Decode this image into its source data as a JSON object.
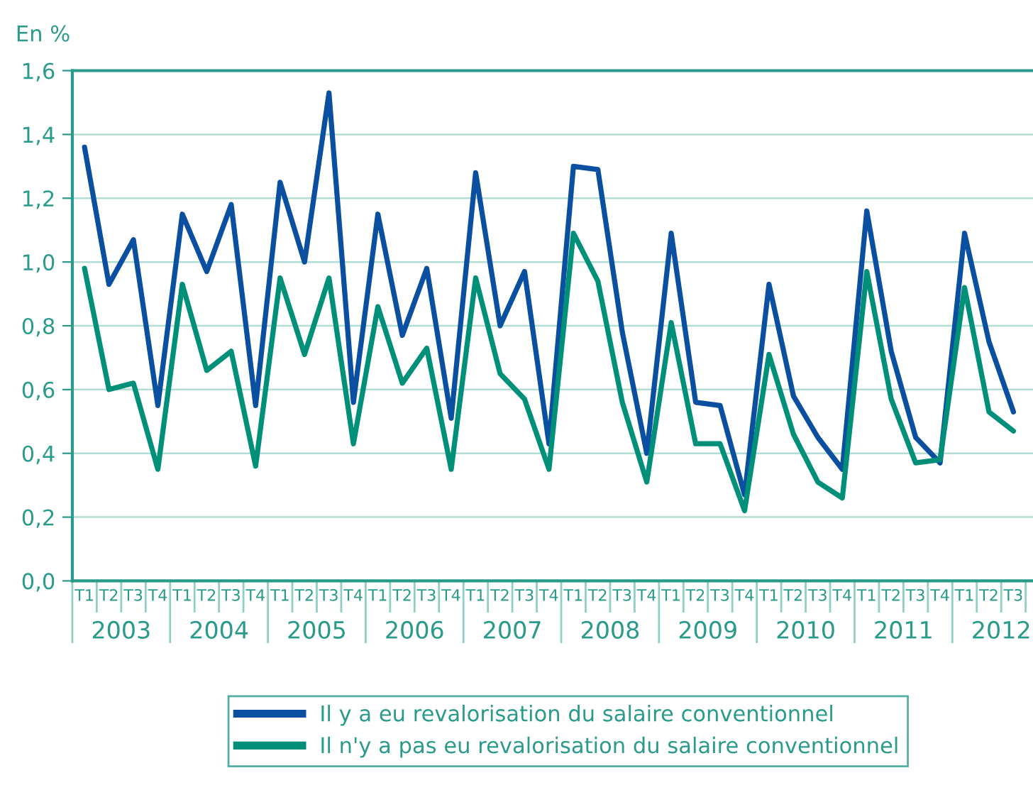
{
  "chart_data": {
    "type": "line",
    "ylabel": "En %",
    "categories": [
      "T1",
      "T2",
      "T3",
      "T4",
      "T1",
      "T2",
      "T3",
      "T4",
      "T1",
      "T2",
      "T3",
      "T4",
      "T1",
      "T2",
      "T3",
      "T4",
      "T1",
      "T2",
      "T3",
      "T4",
      "T1",
      "T2",
      "T3",
      "T4",
      "T1",
      "T2",
      "T3",
      "T4",
      "T1",
      "T2",
      "T3",
      "T4",
      "T1",
      "T2",
      "T3",
      "T4",
      "T1",
      "T2",
      "T3"
    ],
    "annotations": [
      "2003",
      "2004",
      "2005",
      "2006",
      "2007",
      "2008",
      "2009",
      "2010",
      "2011",
      "2012"
    ],
    "series": [
      {
        "name": "Il y a eu revalorisation du salaire conventionnel",
        "color": "#0a4fa0",
        "values": [
          1.36,
          0.93,
          1.07,
          0.55,
          1.15,
          0.97,
          1.18,
          0.55,
          1.25,
          1.0,
          1.53,
          0.56,
          1.15,
          0.77,
          0.98,
          0.51,
          1.28,
          0.8,
          0.97,
          0.43,
          1.3,
          1.29,
          0.78,
          0.4,
          1.09,
          0.56,
          0.55,
          0.27,
          0.93,
          0.58,
          0.45,
          0.35,
          1.16,
          0.72,
          0.45,
          0.37,
          1.09,
          0.75,
          0.53
        ]
      },
      {
        "name": "Il n'y a pas eu revalorisation du salaire conventionnel",
        "color": "#009079",
        "values": [
          0.98,
          0.6,
          0.62,
          0.35,
          0.93,
          0.66,
          0.72,
          0.36,
          0.95,
          0.71,
          0.95,
          0.43,
          0.86,
          0.62,
          0.73,
          0.35,
          0.95,
          0.65,
          0.57,
          0.35,
          1.09,
          0.94,
          0.56,
          0.31,
          0.81,
          0.43,
          0.43,
          0.22,
          0.71,
          0.46,
          0.31,
          0.26,
          0.97,
          0.57,
          0.37,
          0.38,
          0.92,
          0.53,
          0.47
        ]
      }
    ],
    "ylim": [
      0,
      1.6
    ],
    "yticks": [
      {
        "value": 0,
        "label": "0,0"
      },
      {
        "value": 0.2,
        "label": "0,2"
      },
      {
        "value": 0.4,
        "label": "0,4"
      },
      {
        "value": 0.6,
        "label": "0,6"
      },
      {
        "value": 0.8,
        "label": "0,8"
      },
      {
        "value": 1.0,
        "label": "1,0"
      },
      {
        "value": 1.2,
        "label": "1,2"
      },
      {
        "value": 1.4,
        "label": "1,4"
      },
      {
        "value": 1.6,
        "label": "1,6"
      }
    ],
    "grid": "y",
    "legend": "bottom",
    "marker": "none",
    "line_style": "solid"
  }
}
